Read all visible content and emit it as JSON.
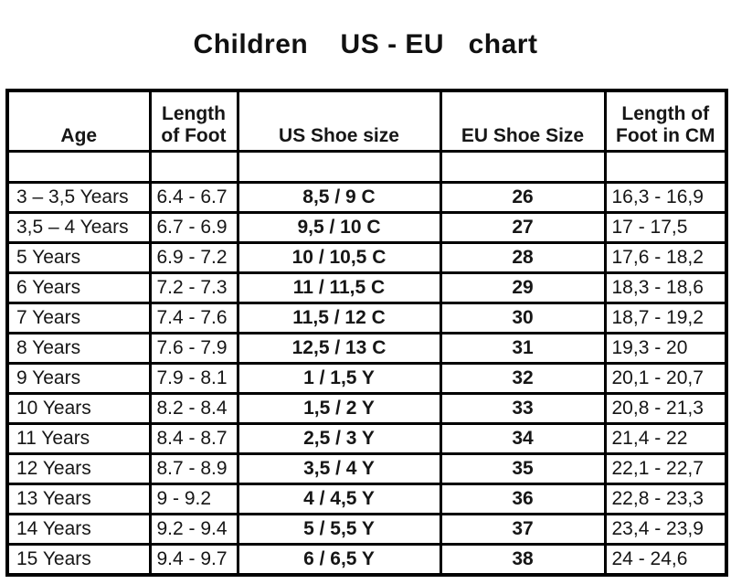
{
  "title": "Children    US - EU   chart",
  "colors": {
    "background": "#ffffff",
    "border": "#000000",
    "text": "#161616"
  },
  "table": {
    "header_display": [
      "Age",
      "Length\nof Foot",
      "US Shoe size",
      "EU Shoe Size",
      "Length of\nFoot in CM"
    ],
    "column_keys": [
      "age",
      "foot-length-inches",
      "us-shoe-size",
      "eu-shoe-size",
      "foot-length-cm"
    ]
  },
  "chart_data": {
    "type": "table",
    "title": "Children US - EU chart",
    "columns": [
      "Age",
      "Length of Foot",
      "US Shoe size",
      "EU Shoe Size",
      "Length of Foot in CM"
    ],
    "rows": [
      [
        "3 – 3,5 Years",
        "6.4 - 6.7",
        "8,5 / 9 C",
        "26",
        "16,3 - 16,9"
      ],
      [
        "3,5 – 4 Years",
        "6.7 - 6.9",
        "9,5 / 10 C",
        "27",
        "17 - 17,5"
      ],
      [
        "5 Years",
        "6.9 - 7.2",
        "10 / 10,5 C",
        "28",
        "17,6 - 18,2"
      ],
      [
        "6 Years",
        "7.2 - 7.3",
        "11 / 11,5 C",
        "29",
        "18,3 - 18,6"
      ],
      [
        "7 Years",
        "7.4 - 7.6",
        "11,5 / 12 C",
        "30",
        "18,7 - 19,2"
      ],
      [
        "8 Years",
        "7.6 - 7.9",
        "12,5 / 13 C",
        "31",
        "19,3 - 20"
      ],
      [
        "9 Years",
        "7.9 - 8.1",
        "1 / 1,5 Y",
        "32",
        "20,1 - 20,7"
      ],
      [
        "10 Years",
        "8.2 - 8.4",
        "1,5 / 2 Y",
        "33",
        "20,8 - 21,3"
      ],
      [
        "11 Years",
        "8.4 - 8.7",
        "2,5 / 3 Y",
        "34",
        "21,4 - 22"
      ],
      [
        "12 Years",
        "8.7 - 8.9",
        "3,5 / 4 Y",
        "35",
        "22,1 - 22,7"
      ],
      [
        "13 Years",
        "9 - 9.2",
        "4 / 4,5 Y",
        "36",
        "22,8 - 23,3"
      ],
      [
        "14 Years",
        "9.2 - 9.4",
        "5 / 5,5 Y",
        "37",
        "23,4 - 23,9"
      ],
      [
        "15 Years",
        "9.4 - 9.7",
        "6 / 6,5 Y",
        "38",
        "24 - 24,6"
      ]
    ]
  }
}
